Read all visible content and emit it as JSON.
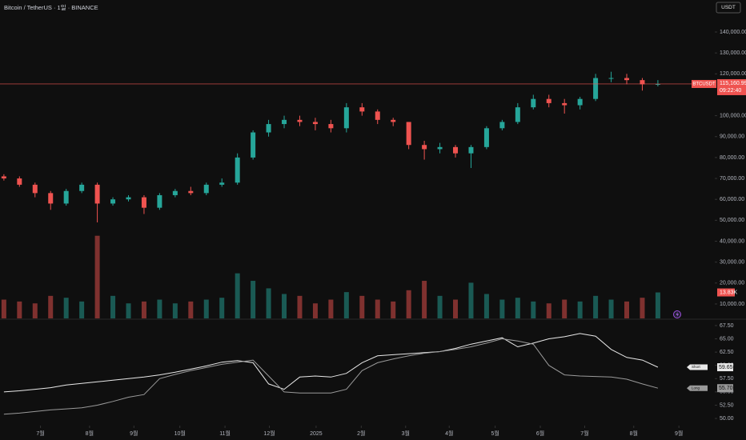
{
  "chart_data": {
    "type": "candlestick",
    "title": "Bitcoin / TetherUS · 1일 · BINANCE",
    "currency": "USDT",
    "symbol": "BTCUSDT",
    "countdown": "09:22:40",
    "up_color": "#26a69a",
    "down_color": "#ef5350",
    "open": [
      71000,
      70000,
      67000,
      63000,
      58000,
      64000,
      67000,
      58000,
      60000,
      61000,
      56000,
      62000,
      64000,
      63000,
      67000,
      68000,
      80000,
      92000,
      96000,
      98000,
      97000,
      96000,
      94000,
      104000,
      102000,
      98000,
      97000,
      86000,
      84000,
      85000,
      82000,
      85000,
      94000,
      97000,
      104000,
      108000,
      106000,
      105000,
      108000,
      118000,
      118000,
      117000,
      115000
    ],
    "high": [
      72000,
      71000,
      68000,
      64000,
      65000,
      68000,
      68000,
      61000,
      62000,
      62000,
      63000,
      65000,
      66000,
      68000,
      70000,
      82000,
      93000,
      98000,
      100000,
      100000,
      99000,
      98000,
      106000,
      106000,
      103000,
      99000,
      97000,
      88000,
      87000,
      86000,
      86000,
      95000,
      98000,
      106000,
      110000,
      110000,
      108000,
      109000,
      120000,
      121000,
      120000,
      118000,
      117000
    ],
    "low": [
      69000,
      66000,
      61000,
      55000,
      57000,
      63000,
      49000,
      57000,
      59000,
      53000,
      55000,
      61000,
      62000,
      62000,
      66000,
      67000,
      79000,
      90000,
      94000,
      95000,
      93000,
      92000,
      92000,
      100000,
      96000,
      95000,
      84000,
      79000,
      82000,
      80000,
      75000,
      84000,
      93000,
      96000,
      103000,
      104000,
      101000,
      103000,
      107000,
      116000,
      115000,
      112000,
      114000
    ],
    "close": [
      70000,
      67000,
      63000,
      58000,
      64000,
      67000,
      58000,
      60000,
      61000,
      56000,
      62000,
      64000,
      63000,
      67000,
      68000,
      80000,
      92000,
      96000,
      98000,
      97000,
      96000,
      94000,
      104000,
      102000,
      98000,
      97000,
      86000,
      84000,
      85000,
      82000,
      85000,
      94000,
      97000,
      104000,
      108000,
      106000,
      105000,
      108000,
      118000,
      118000,
      117000,
      115000,
      115160.99
    ],
    "close_labels": [
      null,
      null,
      null,
      null,
      null,
      null,
      null,
      null,
      null,
      null,
      null,
      null,
      null,
      null,
      null,
      null,
      null,
      null,
      null,
      null,
      null,
      null,
      null,
      null,
      null,
      null,
      null,
      null,
      null,
      null,
      null,
      null,
      null,
      null,
      null,
      null,
      null,
      null,
      null,
      null,
      null,
      null,
      "115,160.99"
    ],
    "volume": [
      10000,
      9000,
      8000,
      12000,
      11000,
      9000,
      44000,
      12000,
      8000,
      9000,
      10000,
      8000,
      9000,
      10000,
      11000,
      24000,
      20000,
      16000,
      13000,
      12000,
      8000,
      10000,
      14000,
      12000,
      10000,
      9000,
      15000,
      20000,
      12000,
      10000,
      19000,
      13000,
      10000,
      11000,
      9000,
      8000,
      10000,
      9000,
      12000,
      10000,
      9000,
      11000,
      13830
    ],
    "volume_labels": [
      null,
      null,
      null,
      null,
      null,
      null,
      null,
      null,
      null,
      null,
      null,
      null,
      null,
      null,
      null,
      null,
      null,
      null,
      null,
      null,
      null,
      null,
      null,
      null,
      null,
      null,
      null,
      null,
      null,
      null,
      null,
      null,
      null,
      null,
      null,
      null,
      null,
      null,
      null,
      null,
      null,
      null,
      "13.83K"
    ],
    "volume_ylim": [
      0,
      46000
    ],
    "ylim": [
      3100,
      155300
    ],
    "yticks": [
      {
        "value": 140000,
        "label": "140,000.00"
      },
      {
        "value": 130000,
        "label": "130,000.00"
      },
      {
        "value": 120000,
        "label": "120,000.00"
      },
      {
        "value": 100000,
        "label": "100,000.00"
      },
      {
        "value": 90000,
        "label": "90,000.00"
      },
      {
        "value": 80000,
        "label": "80,000.00"
      },
      {
        "value": 70000,
        "label": "70,000.00"
      },
      {
        "value": 60000,
        "label": "60,000.00"
      },
      {
        "value": 50000,
        "label": "50,000.00"
      },
      {
        "value": 40000,
        "label": "40,000.00"
      },
      {
        "value": 30000,
        "label": "30,000.00"
      },
      {
        "value": 20000,
        "label": "20,000.00"
      },
      {
        "value": 10000,
        "label": "10,000.00"
      }
    ],
    "xlim": [
      -0.25,
      45.5
    ],
    "xticks": [
      {
        "value": 2.35,
        "label": "7월"
      },
      {
        "value": 5.5,
        "label": "8월"
      },
      {
        "value": 8.35,
        "label": "9월"
      },
      {
        "value": 11.3,
        "label": "10월"
      },
      {
        "value": 14.2,
        "label": "11월"
      },
      {
        "value": 17.05,
        "label": "12월"
      },
      {
        "value": 20.05,
        "label": "2025"
      },
      {
        "value": 22.95,
        "label": "2월"
      },
      {
        "value": 25.8,
        "label": "3월"
      },
      {
        "value": 28.6,
        "label": "4월"
      },
      {
        "value": 31.55,
        "label": "5월"
      },
      {
        "value": 34.45,
        "label": "6월"
      },
      {
        "value": 37.3,
        "label": "7월"
      },
      {
        "value": 40.45,
        "label": "8월"
      },
      {
        "value": 43.35,
        "label": "9월"
      }
    ],
    "indicator": {
      "ylim": [
        48.95,
        68.55
      ],
      "yticks": [
        {
          "value": 67.5,
          "label": "67.50"
        },
        {
          "value": 65,
          "label": "65.00"
        },
        {
          "value": 62.5,
          "label": "62.50"
        },
        {
          "value": 60,
          "label": "60.00"
        },
        {
          "value": 57.5,
          "label": "57.50"
        },
        {
          "value": 55,
          "label": "55.00"
        },
        {
          "value": 52.5,
          "label": "52.50"
        },
        {
          "value": 50,
          "label": "50.00"
        }
      ],
      "series": [
        {
          "name": "Short",
          "color": "#e8e8e8",
          "values": [
            55.0,
            55.2,
            55.5,
            55.8,
            56.3,
            56.6,
            56.9,
            57.2,
            57.5,
            57.8,
            58.2,
            58.7,
            59.3,
            59.9,
            60.6,
            60.9,
            60.5,
            56.5,
            55.5,
            57.8,
            58.0,
            57.8,
            58.5,
            60.5,
            61.8,
            62.0,
            62.2,
            62.4,
            62.6,
            63.2,
            64.0,
            64.6,
            65.2,
            63.5,
            64.2,
            65.0,
            65.4,
            66.0,
            65.5,
            63.0,
            61.5,
            61.0,
            59.65
          ],
          "value_labels": [
            null,
            null,
            null,
            null,
            null,
            null,
            null,
            null,
            null,
            null,
            null,
            null,
            null,
            null,
            null,
            null,
            null,
            null,
            null,
            null,
            null,
            null,
            null,
            null,
            null,
            null,
            null,
            null,
            null,
            null,
            null,
            null,
            null,
            null,
            null,
            null,
            null,
            null,
            null,
            null,
            null,
            null,
            "59.65"
          ]
        },
        {
          "name": "Long",
          "color": "#9a9a9a",
          "values": [
            50.8,
            51.0,
            51.3,
            51.6,
            51.8,
            52.0,
            52.5,
            53.2,
            54.0,
            54.5,
            57.5,
            58.3,
            59.0,
            59.6,
            60.2,
            60.6,
            61.0,
            58.0,
            55.0,
            54.8,
            54.8,
            54.8,
            55.5,
            59.0,
            60.5,
            61.2,
            61.8,
            62.3,
            62.6,
            63.0,
            63.5,
            64.2,
            65.0,
            64.6,
            64.0,
            60.0,
            58.2,
            58.0,
            57.9,
            57.8,
            57.4,
            56.5,
            55.7
          ],
          "value_labels": [
            null,
            null,
            null,
            null,
            null,
            null,
            null,
            null,
            null,
            null,
            null,
            null,
            null,
            null,
            null,
            null,
            null,
            null,
            null,
            null,
            null,
            null,
            null,
            null,
            null,
            null,
            null,
            null,
            null,
            null,
            null,
            null,
            null,
            null,
            null,
            null,
            null,
            null,
            null,
            null,
            null,
            null,
            "55.70"
          ]
        }
      ]
    }
  }
}
